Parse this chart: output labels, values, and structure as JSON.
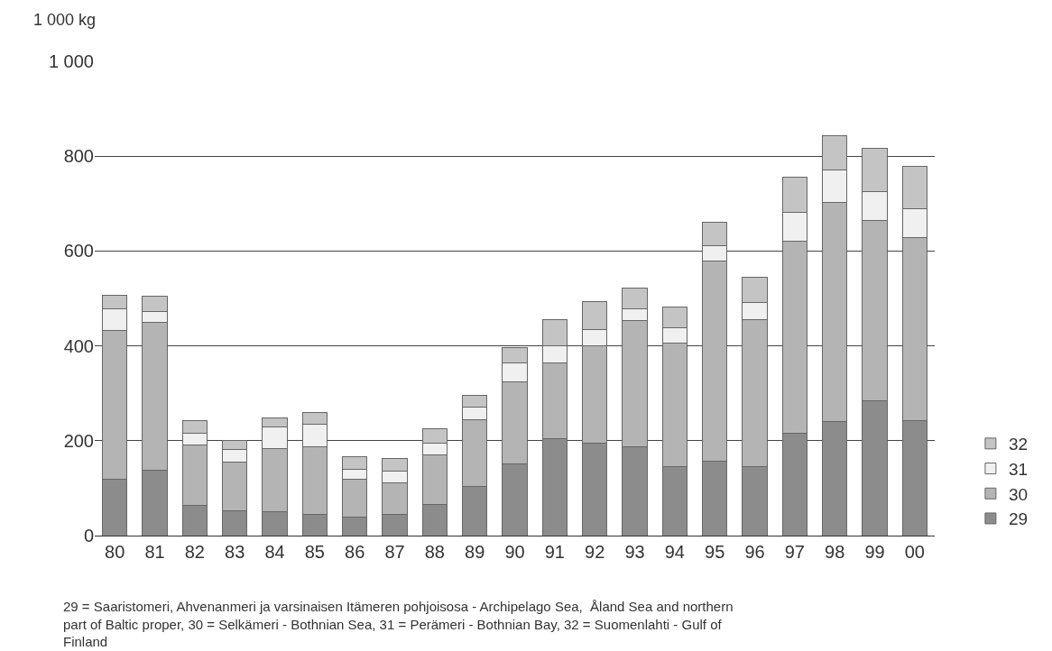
{
  "chart_data": {
    "type": "bar",
    "stacked": true,
    "ylabel": "1 000 kg",
    "categories": [
      "80",
      "81",
      "82",
      "83",
      "84",
      "85",
      "86",
      "87",
      "88",
      "89",
      "90",
      "91",
      "92",
      "93",
      "94",
      "95",
      "96",
      "97",
      "98",
      "99",
      "00"
    ],
    "series": [
      {
        "name": "29",
        "color": "#8c8c8c",
        "values": [
          118,
          138,
          63,
          53,
          50,
          45,
          39,
          45,
          66,
          104,
          152,
          205,
          195,
          187,
          146,
          156,
          145,
          216,
          240,
          284,
          242
        ]
      },
      {
        "name": "30",
        "color": "#b4b4b4",
        "values": [
          314,
          311,
          129,
          102,
          134,
          143,
          80,
          67,
          105,
          141,
          173,
          159,
          206,
          266,
          259,
          422,
          310,
          405,
          463,
          380,
          387
        ]
      },
      {
        "name": "31",
        "color": "#f0f0f0",
        "values": [
          46,
          24,
          24,
          27,
          46,
          46,
          21,
          24,
          24,
          25,
          39,
          36,
          33,
          25,
          33,
          34,
          36,
          61,
          67,
          61,
          60
        ]
      },
      {
        "name": "32",
        "color": "#c4c4c4",
        "values": [
          28,
          31,
          26,
          19,
          19,
          25,
          27,
          27,
          30,
          26,
          33,
          55,
          60,
          44,
          44,
          48,
          54,
          74,
          73,
          92,
          89
        ]
      }
    ],
    "ylim": [
      0,
      1000
    ],
    "yticks": [
      0,
      200,
      400,
      600,
      800,
      {
        "value": 1000,
        "label": "1 000"
      }
    ],
    "grid": "y",
    "legend": "right",
    "annotations": [
      "29 = Saaristomeri, Ahvenanmeri ja varsinaisen Itämeren pohjoisosa - Archipelago Sea,  Åland Sea and northern part of Baltic proper, 30 = Selkämeri - Bothnian Sea, 31 = Perämeri - Bothnian Bay, 32 = Suomenlahti - Gulf of Finland"
    ]
  }
}
